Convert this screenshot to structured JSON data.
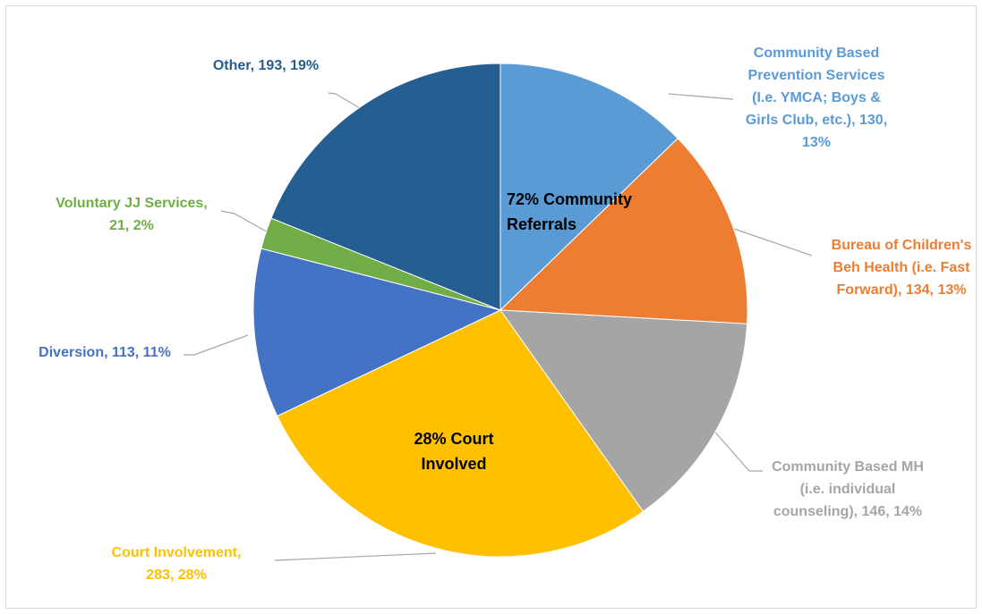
{
  "chart_data": {
    "type": "pie",
    "slices": [
      {
        "name": "Community Based Prevention Services (I.e. YMCA; Boys & Girls Club, etc.)",
        "value": 130,
        "percent": "13%",
        "color": "#5b9bd5",
        "label_lines": [
          "Community Based",
          "Prevention Services",
          "(I.e. YMCA; Boys &",
          "Girls Club, etc.), 130,",
          "13%"
        ]
      },
      {
        "name": "Bureau of Children's Beh Health (i.e. Fast Forward)",
        "value": 134,
        "percent": "13%",
        "color": "#ed7d31",
        "label_lines": [
          "Bureau of Children's",
          "Beh Health (i.e. Fast",
          "Forward), 134, 13%"
        ]
      },
      {
        "name": "Community Based MH (i.e. individual counseling)",
        "value": 146,
        "percent": "14%",
        "color": "#a5a5a5",
        "label_lines": [
          "Community Based MH",
          "(i.e. individual",
          "counseling), 146, 14%"
        ]
      },
      {
        "name": "Court Involvement",
        "value": 283,
        "percent": "28%",
        "color": "#ffc000",
        "label_lines": [
          "Court Involvement,",
          "283, 28%"
        ]
      },
      {
        "name": "Diversion",
        "value": 113,
        "percent": "11%",
        "color": "#4472c4",
        "label_lines": [
          "Diversion, 113, 11%"
        ]
      },
      {
        "name": "Voluntary JJ Services",
        "value": 21,
        "percent": "2%",
        "color": "#70ad47",
        "label_lines": [
          "Voluntary JJ Services,",
          "21, 2%"
        ]
      },
      {
        "name": "Other",
        "value": 193,
        "percent": "19%",
        "color": "#255e91",
        "label_lines": [
          "Other, 193, 19%"
        ]
      }
    ],
    "annotations": [
      {
        "lines": [
          "72% Community",
          "Referrals"
        ]
      },
      {
        "lines": [
          "28% Court",
          "Involved"
        ]
      }
    ]
  }
}
